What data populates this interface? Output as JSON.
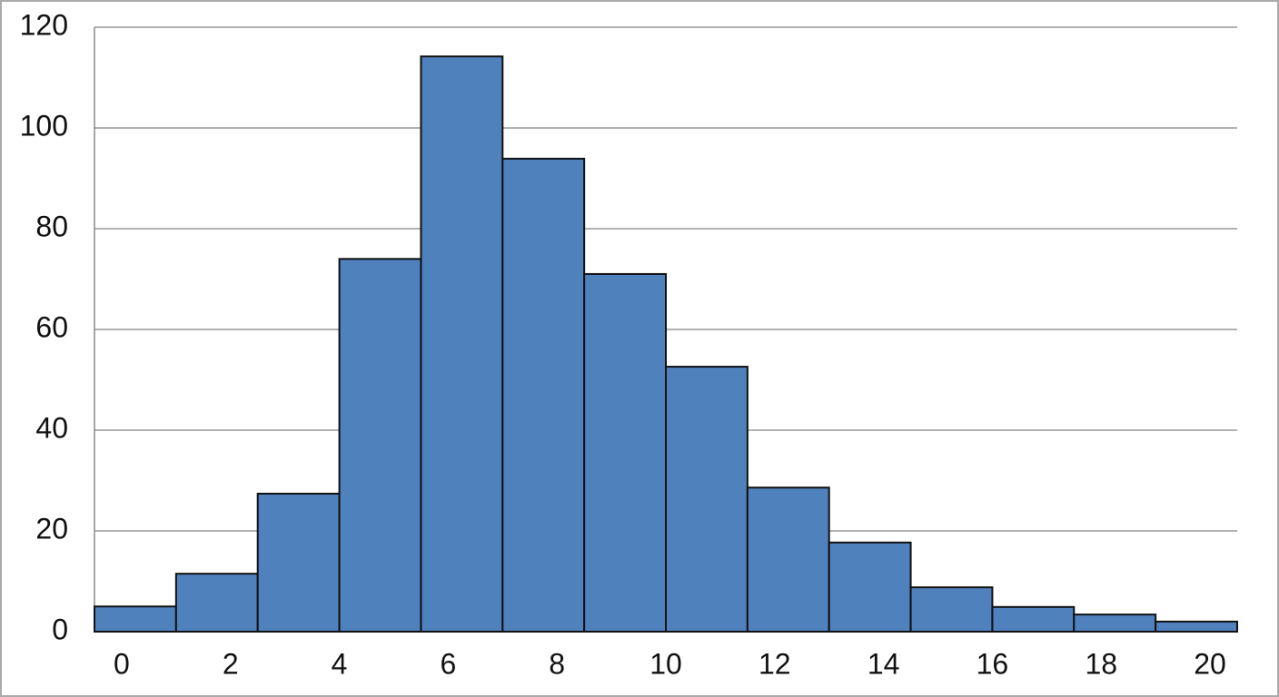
{
  "chart_data": {
    "type": "histogram",
    "bins": [
      -0.5,
      1,
      2.5,
      4,
      5.5,
      7,
      8.5,
      10,
      11.5,
      13,
      14.5,
      16,
      17.5,
      19,
      20.5
    ],
    "values": [
      5,
      11.5,
      27.4,
      74,
      114.2,
      93.9,
      71,
      52.6,
      28.6,
      17.7,
      8.8,
      4.9,
      3.4,
      2
    ],
    "color": "#4f81bd",
    "xlim": [
      -0.5,
      20.5
    ],
    "xticks": [
      0,
      2,
      4,
      6,
      8,
      10,
      12,
      14,
      16,
      18,
      20
    ],
    "ylim": [
      0,
      120
    ],
    "yticks": [
      0,
      20,
      40,
      60,
      80,
      100,
      120
    ],
    "grid": true
  }
}
